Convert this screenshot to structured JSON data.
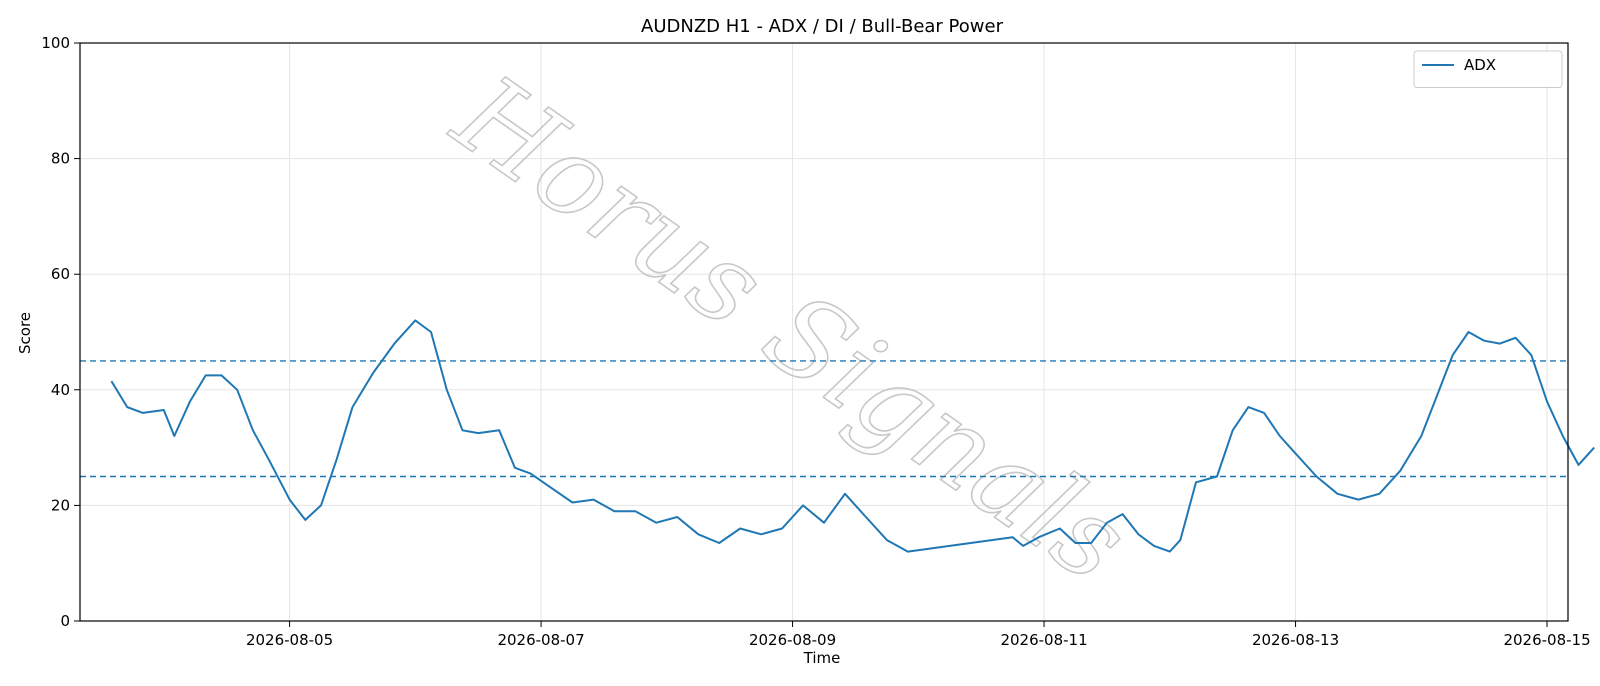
{
  "chart_data": {
    "type": "line",
    "title": "AUDNZD H1 - ADX / DI / Bull-Bear Power",
    "xlabel": "Time",
    "ylabel": "Score",
    "ylim": [
      0,
      100
    ],
    "yticks": [
      0,
      20,
      40,
      60,
      80,
      100
    ],
    "xlim": [
      "2026-08-03 08:00",
      "2026-08-15 04:00"
    ],
    "xticks": [
      "2026-08-05",
      "2026-08-07",
      "2026-08-09",
      "2026-08-11",
      "2026-08-13",
      "2026-08-15"
    ],
    "grid": true,
    "legend": "top-right",
    "watermark": "Horus Signals",
    "hlines": [
      {
        "y": 45,
        "color": "#1f77b4",
        "style": "dashed"
      },
      {
        "y": 25,
        "color": "#1f77b4",
        "style": "dashed"
      }
    ],
    "series": [
      {
        "name": "ADX",
        "color": "#1f77b4",
        "points": [
          [
            "2026-08-03 14:00",
            41.5
          ],
          [
            "2026-08-03 17:00",
            37
          ],
          [
            "2026-08-03 20:00",
            36
          ],
          [
            "2026-08-04 00:00",
            36.5
          ],
          [
            "2026-08-04 02:00",
            32
          ],
          [
            "2026-08-04 05:00",
            38
          ],
          [
            "2026-08-04 08:00",
            42.5
          ],
          [
            "2026-08-04 11:00",
            42.5
          ],
          [
            "2026-08-04 14:00",
            40
          ],
          [
            "2026-08-04 17:00",
            33
          ],
          [
            "2026-08-04 20:00",
            28
          ],
          [
            "2026-08-05 00:00",
            21
          ],
          [
            "2026-08-05 03:00",
            17.5
          ],
          [
            "2026-08-05 06:00",
            20
          ],
          [
            "2026-08-05 09:00",
            28
          ],
          [
            "2026-08-05 12:00",
            37
          ],
          [
            "2026-08-05 16:00",
            43
          ],
          [
            "2026-08-05 20:00",
            48
          ],
          [
            "2026-08-06 00:00",
            52
          ],
          [
            "2026-08-06 03:00",
            50
          ],
          [
            "2026-08-06 06:00",
            40
          ],
          [
            "2026-08-06 09:00",
            33
          ],
          [
            "2026-08-06 12:00",
            32.5
          ],
          [
            "2026-08-06 16:00",
            33
          ],
          [
            "2026-08-06 19:00",
            26.5
          ],
          [
            "2026-08-06 22:00",
            25.5
          ],
          [
            "2026-08-07 02:00",
            23
          ],
          [
            "2026-08-07 06:00",
            20.5
          ],
          [
            "2026-08-07 10:00",
            21
          ],
          [
            "2026-08-07 14:00",
            19
          ],
          [
            "2026-08-07 18:00",
            19
          ],
          [
            "2026-08-07 22:00",
            17
          ],
          [
            "2026-08-08 02:00",
            18
          ],
          [
            "2026-08-08 06:00",
            15
          ],
          [
            "2026-08-08 10:00",
            13.5
          ],
          [
            "2026-08-08 14:00",
            16
          ],
          [
            "2026-08-08 18:00",
            15
          ],
          [
            "2026-08-08 22:00",
            16
          ],
          [
            "2026-08-09 02:00",
            20
          ],
          [
            "2026-08-09 06:00",
            17
          ],
          [
            "2026-08-09 10:00",
            22
          ],
          [
            "2026-08-09 14:00",
            18
          ],
          [
            "2026-08-09 18:00",
            14
          ],
          [
            "2026-08-09 22:00",
            12
          ],
          [
            "2026-08-10 18:00",
            14.5
          ],
          [
            "2026-08-10 20:00",
            13
          ],
          [
            "2026-08-10 23:00",
            14.5
          ],
          [
            "2026-08-11 03:00",
            16
          ],
          [
            "2026-08-11 06:00",
            13.5
          ],
          [
            "2026-08-11 09:00",
            13.5
          ],
          [
            "2026-08-11 12:00",
            17
          ],
          [
            "2026-08-11 15:00",
            18.5
          ],
          [
            "2026-08-11 18:00",
            15
          ],
          [
            "2026-08-11 21:00",
            13
          ],
          [
            "2026-08-12 00:00",
            12
          ],
          [
            "2026-08-12 02:00",
            14
          ],
          [
            "2026-08-12 05:00",
            24
          ],
          [
            "2026-08-12 09:00",
            25
          ],
          [
            "2026-08-12 12:00",
            33
          ],
          [
            "2026-08-12 15:00",
            37
          ],
          [
            "2026-08-12 18:00",
            36
          ],
          [
            "2026-08-12 21:00",
            32
          ],
          [
            "2026-08-13 00:00",
            29
          ],
          [
            "2026-08-13 04:00",
            25
          ],
          [
            "2026-08-13 08:00",
            22
          ],
          [
            "2026-08-13 12:00",
            21
          ],
          [
            "2026-08-13 16:00",
            22
          ],
          [
            "2026-08-13 20:00",
            26
          ],
          [
            "2026-08-14 00:00",
            32
          ],
          [
            "2026-08-14 03:00",
            39
          ],
          [
            "2026-08-14 06:00",
            46
          ],
          [
            "2026-08-14 09:00",
            50
          ],
          [
            "2026-08-14 12:00",
            48.5
          ],
          [
            "2026-08-14 15:00",
            48
          ],
          [
            "2026-08-14 18:00",
            49
          ],
          [
            "2026-08-14 21:00",
            46
          ],
          [
            "2026-08-15 00:00",
            38
          ],
          [
            "2026-08-15 03:00",
            32
          ],
          [
            "2026-08-15 06:00",
            27
          ],
          [
            "2026-08-15 09:00",
            30
          ]
        ]
      }
    ]
  }
}
